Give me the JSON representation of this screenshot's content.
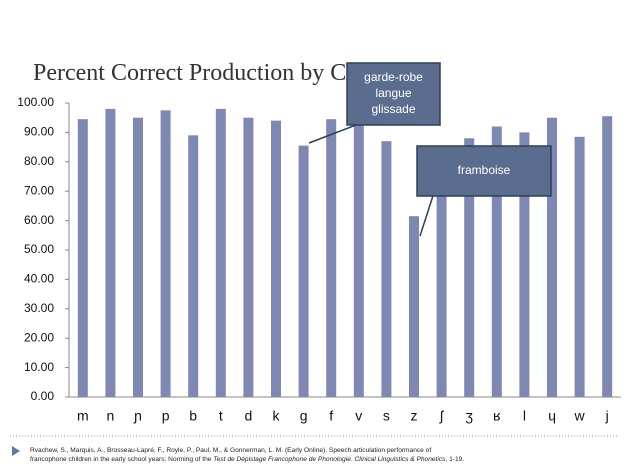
{
  "chart_data": {
    "type": "bar",
    "title": "Percent Correct Production by Consonant",
    "categories": [
      "m",
      "n",
      "ɲ",
      "p",
      "b",
      "t",
      "d",
      "k",
      "g",
      "f",
      "v",
      "s",
      "z",
      "ʃ",
      "ʒ",
      "ʁ",
      "l",
      "ɥ",
      "w",
      "j"
    ],
    "values": [
      94.5,
      98,
      95,
      97.5,
      89,
      98,
      95,
      94,
      85.5,
      94.5,
      93,
      87,
      61.5,
      83,
      88,
      92,
      90,
      95,
      88.5,
      95.5
    ],
    "color": "#7f87b3",
    "ylim": [
      0,
      100
    ],
    "yticks": [
      {
        "value": 0,
        "label": "0.00"
      },
      {
        "value": 10,
        "label": "10.00"
      },
      {
        "value": 20,
        "label": "20.00"
      },
      {
        "value": 30,
        "label": "30.00"
      },
      {
        "value": 40,
        "label": "40.00"
      },
      {
        "value": 50,
        "label": "50.00"
      },
      {
        "value": 60,
        "label": "60.00"
      },
      {
        "value": 70,
        "label": "70.00"
      },
      {
        "value": 80,
        "label": "80.00"
      },
      {
        "value": 90,
        "label": "90.00"
      },
      {
        "value": 100,
        "label": "100.00"
      }
    ],
    "annotations": [
      {
        "lines": [
          "garde-robe",
          "langue",
          "glissade"
        ]
      },
      {
        "lines": [
          "framboise"
        ]
      }
    ]
  },
  "citation": [
    "Rvachew, S., Marquis, A., Brosseau-Lapré, F., Royle, P., Paul, M., & Gonnerman, L. M. (Early Online). Speech articulation performance of",
    "francophone children in the early school years: Norming of the ",
    "Test de Dépistage Francophone de Phonologie",
    ". ",
    "Clinical Linguistics & Phonetics",
    ", 1-19."
  ]
}
